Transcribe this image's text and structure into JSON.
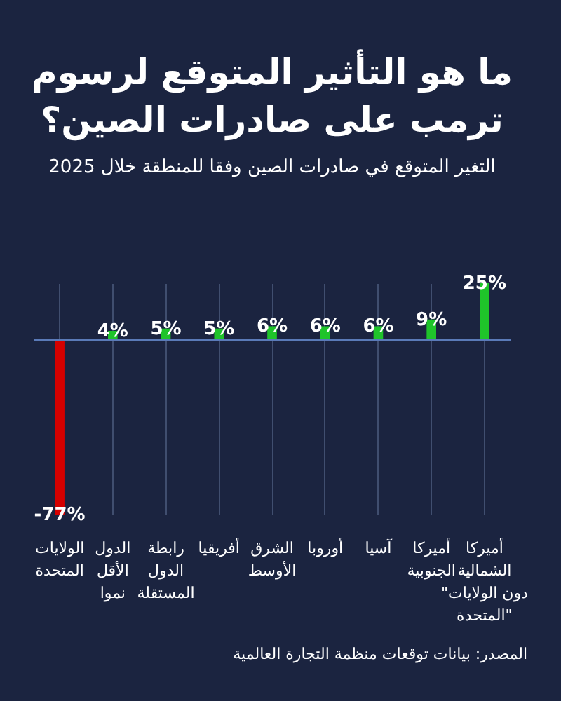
{
  "chart_data": {
    "type": "bar",
    "title": "ما هو التأثير المتوقع لرسوم\nترمب على صادرات الصين؟",
    "subtitle": "التغير المتوقع في صادرات الصين وفقا للمنطقة خلال 2025",
    "categories": [
      "الولايات\nالمتحدة",
      "الدول\nالأقل\nنموا",
      "رابطة\nالدول\nالمستقلة",
      "أفريقيا",
      "الشرق\nالأوسط",
      "أوروبا",
      "آسيا",
      "أميركا\nالجنوبية",
      "أميركا\nالشمالية\n\"دون الولايات\nالمتحدة\""
    ],
    "values": [
      -77,
      4,
      5,
      5,
      6,
      6,
      6,
      9,
      25
    ],
    "colors": [
      "#d40000",
      "#1fc42a",
      "#1fc42a",
      "#1fc42a",
      "#1fc42a",
      "#1fc42a",
      "#1fc42a",
      "#1fc42a",
      "#1fc42a"
    ],
    "value_labels": [
      "-77%",
      "4%",
      "5%",
      "5%",
      "6%",
      "6%",
      "6%",
      "9%",
      "25%"
    ],
    "ref_lines": [
      {
        "axis": "y",
        "value": 0,
        "color": "#5a7ab8"
      }
    ],
    "grid": "x",
    "annotations": [
      "المصدر: بيانات توقعات منظمة التجارة العالمية"
    ]
  }
}
